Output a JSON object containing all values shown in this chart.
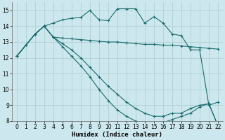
{
  "xlabel": "Humidex (Indice chaleur)",
  "background_color": "#cce8ee",
  "grid_color": "#aacccc",
  "line_color": "#1a6b6b",
  "xlim": [
    -0.5,
    22.5
  ],
  "ylim": [
    8,
    15.5
  ],
  "yticks": [
    8,
    9,
    10,
    11,
    12,
    13,
    14,
    15
  ],
  "xticks": [
    0,
    1,
    2,
    3,
    4,
    5,
    6,
    7,
    8,
    9,
    10,
    11,
    12,
    13,
    14,
    15,
    16,
    17,
    18,
    19,
    20,
    21,
    22
  ],
  "series": [
    {
      "x": [
        0,
        1,
        2,
        3,
        4,
        5,
        6,
        7,
        8,
        9,
        10,
        11,
        12,
        13,
        14,
        15,
        16,
        17,
        18,
        19,
        20,
        21,
        22
      ],
      "y": [
        12.1,
        12.8,
        13.5,
        14.0,
        14.2,
        14.4,
        14.5,
        14.55,
        15.0,
        14.4,
        14.35,
        15.1,
        15.1,
        15.1,
        14.2,
        14.6,
        14.2,
        13.5,
        13.4,
        12.5,
        12.5,
        9.0,
        9.2
      ]
    },
    {
      "x": [
        0,
        1,
        2,
        3,
        4,
        5,
        6,
        7,
        8,
        9,
        10,
        11,
        12,
        13,
        14,
        15,
        16,
        17,
        18,
        19,
        20,
        21,
        22
      ],
      "y": [
        12.1,
        12.8,
        13.5,
        14.0,
        13.3,
        13.25,
        13.2,
        13.15,
        13.1,
        13.05,
        13.0,
        13.0,
        12.95,
        12.9,
        12.85,
        12.85,
        12.8,
        12.8,
        12.75,
        12.7,
        12.65,
        12.6,
        12.55
      ]
    },
    {
      "x": [
        0,
        2,
        3,
        4,
        5,
        6,
        7,
        8,
        9,
        10,
        11,
        12,
        13,
        14,
        15,
        16,
        17,
        18,
        19,
        20,
        21,
        22
      ],
      "y": [
        12.1,
        13.5,
        14.0,
        13.3,
        12.9,
        12.5,
        12.0,
        11.4,
        10.8,
        10.2,
        9.7,
        9.2,
        8.8,
        8.5,
        8.3,
        8.3,
        8.5,
        8.5,
        8.8,
        9.0,
        9.1,
        7.7
      ]
    },
    {
      "x": [
        0,
        2,
        3,
        4,
        5,
        6,
        7,
        8,
        9,
        10,
        11,
        12,
        13,
        14,
        15,
        16,
        17,
        18,
        19,
        20,
        21,
        22
      ],
      "y": [
        12.1,
        13.5,
        14.0,
        13.3,
        12.7,
        12.1,
        11.5,
        10.8,
        10.0,
        9.3,
        8.7,
        8.3,
        8.0,
        7.8,
        7.8,
        7.9,
        8.1,
        8.3,
        8.5,
        8.9,
        9.1,
        7.7
      ]
    }
  ]
}
